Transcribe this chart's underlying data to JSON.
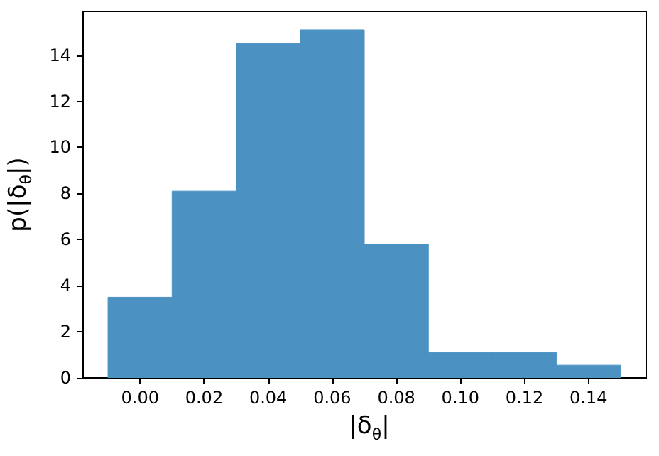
{
  "chart_data": {
    "type": "histogram",
    "xlabel": "|δ$_{θ}$|",
    "ylabel": "p(|δ$_{θ}$|)",
    "bins": [
      -0.01,
      0.01,
      0.03,
      0.05,
      0.07,
      0.09,
      0.11,
      0.13,
      0.15
    ],
    "values": [
      3.5,
      8.1,
      14.5,
      15.1,
      5.8,
      1.1,
      1.1,
      0.55
    ],
    "color": "#4b92c3",
    "xlim": [
      -0.018,
      0.158
    ],
    "xticks": [
      {
        "value": 0,
        "label": "0.00"
      },
      {
        "value": 0.02,
        "label": "0.02"
      },
      {
        "value": 0.04,
        "label": "0.04"
      },
      {
        "value": 0.06,
        "label": "0.06"
      },
      {
        "value": 0.08,
        "label": "0.08"
      },
      {
        "value": 0.1,
        "label": "0.10"
      },
      {
        "value": 0.12,
        "label": "0.12"
      },
      {
        "value": 0.14,
        "label": "0.14"
      }
    ],
    "ylim": [
      0,
      15.9
    ],
    "yticks": [
      0,
      2,
      4,
      6,
      8,
      10,
      12,
      14
    ],
    "grid": false
  }
}
